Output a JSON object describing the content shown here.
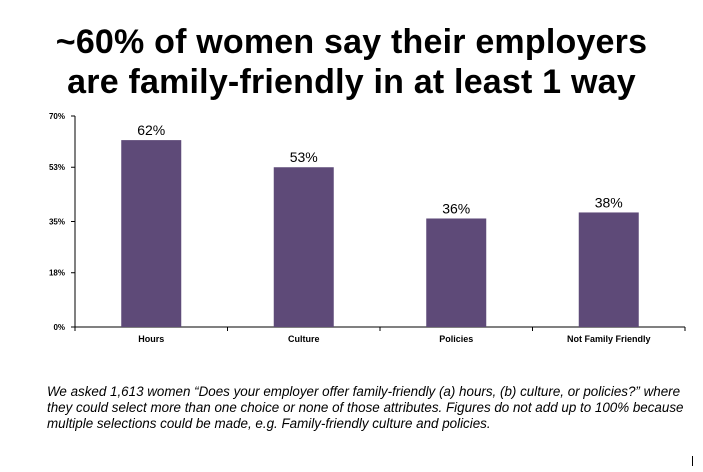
{
  "title_line1": "~60% of women say their employers",
  "title_line2": "are family-friendly in at least 1 way",
  "footnote": "We asked 1,613 women “Does your employer offer family-friendly (a) hours, (b) culture, or policies?” where they could select more than one choice or none of those attributes. Figures do not add up to 100% because multiple selections could be made, e.g. Family-friendly culture and policies.",
  "chart_data": {
    "type": "bar",
    "title": "~60% of women say their employers are family-friendly in at least 1 way",
    "categories": [
      "Hours",
      "Culture",
      "Policies",
      "Not Family Friendly"
    ],
    "values": [
      62,
      53,
      36,
      38
    ],
    "data_labels": [
      "62%",
      "53%",
      "36%",
      "38%"
    ],
    "ylim": [
      0,
      70
    ],
    "yticks": [
      0,
      18,
      35,
      53,
      70
    ],
    "ytick_labels": [
      "0%",
      "18%",
      "35%",
      "53%",
      "70%"
    ],
    "bar_color": "#5e4a78",
    "grid": false,
    "legend": "none"
  }
}
